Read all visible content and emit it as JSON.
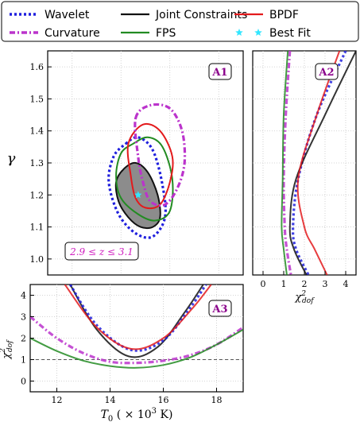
{
  "legend": {
    "items": [
      {
        "label": "Wavelet",
        "color": "#1f1fdd",
        "style": "dotted"
      },
      {
        "label": "Curvature",
        "color": "#bb33cc",
        "style": "dashdot"
      },
      {
        "label": "Joint Constraints",
        "color": "#111111",
        "style": "solid"
      },
      {
        "label": "FPS",
        "color": "#228b22",
        "style": "solid"
      },
      {
        "label": "BPDF",
        "color": "#e31a1c",
        "style": "solid"
      },
      {
        "label": "Best Fit",
        "color": "#33e6ff",
        "style": "star"
      }
    ]
  },
  "chart_data": [
    {
      "panel": "A1",
      "type": "scatter",
      "xlim": [
        11,
        19
      ],
      "ylim": [
        0.95,
        1.65
      ],
      "ylabel": "γ",
      "yticks": [
        1.0,
        1.1,
        1.2,
        1.3,
        1.4,
        1.5,
        1.6
      ],
      "grid": true,
      "annotation": "2.9 ≤ z ≤ 3.1",
      "best_fit": {
        "x": 14.7,
        "y": 1.2
      },
      "contours": [
        {
          "name": "Joint Constraints",
          "filled": true,
          "points": [
            [
              14.1,
              1.28
            ],
            [
              14.6,
              1.3
            ],
            [
              15.1,
              1.27
            ],
            [
              15.5,
              1.2
            ],
            [
              15.6,
              1.13
            ],
            [
              15.3,
              1.1
            ],
            [
              14.8,
              1.1
            ],
            [
              14.3,
              1.13
            ],
            [
              13.9,
              1.18
            ],
            [
              13.8,
              1.24
            ]
          ]
        },
        {
          "name": "Wavelet",
          "points": [
            [
              14.2,
              1.36
            ],
            [
              14.7,
              1.38
            ],
            [
              15.3,
              1.34
            ],
            [
              15.7,
              1.23
            ],
            [
              15.8,
              1.13
            ],
            [
              15.3,
              1.07
            ],
            [
              14.6,
              1.08
            ],
            [
              13.9,
              1.14
            ],
            [
              13.5,
              1.24
            ],
            [
              13.7,
              1.32
            ]
          ]
        },
        {
          "name": "FPS",
          "points": [
            [
              14.5,
              1.36
            ],
            [
              15.1,
              1.38
            ],
            [
              15.7,
              1.35
            ],
            [
              16.1,
              1.25
            ],
            [
              16.0,
              1.15
            ],
            [
              15.4,
              1.12
            ],
            [
              14.7,
              1.14
            ],
            [
              14.0,
              1.19
            ],
            [
              13.8,
              1.26
            ],
            [
              14.0,
              1.33
            ]
          ]
        },
        {
          "name": "BPDF",
          "points": [
            [
              14.3,
              1.36
            ],
            [
              14.9,
              1.42
            ],
            [
              15.6,
              1.4
            ],
            [
              16.1,
              1.32
            ],
            [
              16.0,
              1.24
            ],
            [
              15.6,
              1.17
            ],
            [
              15.0,
              1.16
            ],
            [
              14.6,
              1.19
            ],
            [
              14.4,
              1.26
            ]
          ]
        },
        {
          "name": "Curvature",
          "points": [
            [
              14.6,
              1.44
            ],
            [
              15.2,
              1.48
            ],
            [
              16.0,
              1.47
            ],
            [
              16.5,
              1.4
            ],
            [
              16.6,
              1.3
            ],
            [
              16.3,
              1.22
            ],
            [
              15.8,
              1.17
            ],
            [
              15.2,
              1.18
            ],
            [
              14.9,
              1.24
            ],
            [
              14.7,
              1.32
            ]
          ]
        }
      ]
    },
    {
      "panel": "A2",
      "type": "line",
      "xlim": [
        -0.5,
        4.5
      ],
      "ylim": [
        0.95,
        1.65
      ],
      "xlabel": "χ²_dof",
      "xticks": [
        0,
        1,
        2,
        3,
        4
      ],
      "grid": true,
      "series": [
        {
          "name": "Curvature",
          "x": [
            1.3,
            1.1,
            1.0,
            1.05,
            1.15,
            1.35
          ],
          "y": [
            1.65,
            1.45,
            1.25,
            1.1,
            1.03,
            0.95
          ]
        },
        {
          "name": "FPS",
          "x": [
            1.2,
            1.0,
            0.95,
            0.9,
            1.0,
            1.15
          ],
          "y": [
            1.65,
            1.45,
            1.25,
            1.1,
            1.03,
            0.95
          ]
        },
        {
          "name": "Wavelet",
          "x": [
            4.0,
            2.6,
            1.7,
            1.45,
            1.6,
            2.2
          ],
          "y": [
            1.65,
            1.45,
            1.25,
            1.1,
            1.03,
            0.95
          ]
        },
        {
          "name": "Joint Constraints",
          "x": [
            4.5,
            3.0,
            1.6,
            1.3,
            1.5,
            2.1
          ],
          "y": [
            1.65,
            1.45,
            1.25,
            1.1,
            1.03,
            0.95
          ]
        },
        {
          "name": "BPDF",
          "x": [
            3.7,
            2.6,
            1.7,
            2.0,
            2.5,
            3.1
          ],
          "y": [
            1.65,
            1.45,
            1.25,
            1.1,
            1.03,
            0.95
          ]
        }
      ]
    },
    {
      "panel": "A3",
      "type": "line",
      "xlim": [
        11,
        19
      ],
      "ylim": [
        -0.5,
        4.5
      ],
      "xlabel": "T₀ (×10³ K)",
      "ylabel": "χ²_dof",
      "xticks": [
        12,
        14,
        16,
        18
      ],
      "yticks": [
        0,
        1,
        2,
        3,
        4
      ],
      "grid": true,
      "reference_line": 1,
      "series": [
        {
          "name": "Curvature",
          "x": [
            11,
            12,
            13,
            14,
            15,
            16,
            17,
            18,
            19
          ],
          "y": [
            3.0,
            2.0,
            1.3,
            0.9,
            0.85,
            0.95,
            1.2,
            1.7,
            2.5
          ]
        },
        {
          "name": "FPS",
          "x": [
            11,
            12,
            13,
            14,
            15,
            16,
            17,
            18,
            19
          ],
          "y": [
            2.0,
            1.4,
            0.95,
            0.7,
            0.62,
            0.75,
            1.1,
            1.7,
            2.4
          ]
        },
        {
          "name": "Joint Constraints",
          "x": [
            12.5,
            13.5,
            14.7,
            15.8,
            16.8,
            17.5
          ],
          "y": [
            4.5,
            2.4,
            1.15,
            1.6,
            3.2,
            4.5
          ]
        },
        {
          "name": "Wavelet",
          "x": [
            12.5,
            13.5,
            14.8,
            16.0,
            17.0,
            17.6
          ],
          "y": [
            4.5,
            2.6,
            1.45,
            1.9,
            3.4,
            4.5
          ]
        },
        {
          "name": "BPDF",
          "x": [
            12.3,
            13.5,
            14.8,
            16.0,
            17.1,
            17.8
          ],
          "y": [
            4.5,
            2.5,
            1.5,
            2.0,
            3.4,
            4.5
          ]
        }
      ]
    }
  ]
}
